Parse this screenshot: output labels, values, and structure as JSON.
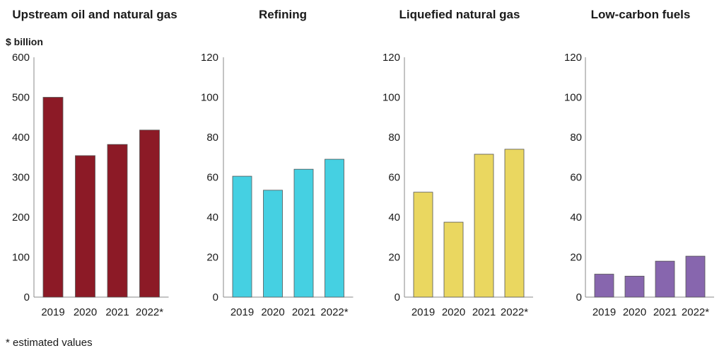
{
  "footnote": "* estimated values",
  "chart_data": [
    {
      "type": "bar",
      "title": "Upstream oil and natural gas",
      "ylabel": "$ billion",
      "categories": [
        "2019",
        "2020",
        "2021",
        "2022*"
      ],
      "values": [
        500,
        354,
        382,
        418
      ],
      "ylim": [
        0,
        600
      ],
      "yticks": [
        0,
        100,
        200,
        300,
        400,
        500,
        600
      ],
      "color": "#8c1a26",
      "grid": false
    },
    {
      "type": "bar",
      "title": "Refining",
      "ylabel": "",
      "categories": [
        "2019",
        "2020",
        "2021",
        "2022*"
      ],
      "values": [
        60.5,
        53.5,
        64,
        69
      ],
      "ylim": [
        0,
        120
      ],
      "yticks": [
        0,
        20,
        40,
        60,
        80,
        100,
        120
      ],
      "color": "#45d0e2",
      "grid": false
    },
    {
      "type": "bar",
      "title": "Liquefied natural gas",
      "ylabel": "",
      "categories": [
        "2019",
        "2020",
        "2021",
        "2022*"
      ],
      "values": [
        52.5,
        37.5,
        71.5,
        74
      ],
      "ylim": [
        0,
        120
      ],
      "yticks": [
        0,
        20,
        40,
        60,
        80,
        100,
        120
      ],
      "color": "#ead760",
      "grid": false
    },
    {
      "type": "bar",
      "title": "Low-carbon fuels",
      "ylabel": "",
      "categories": [
        "2019",
        "2020",
        "2021",
        "2022*"
      ],
      "values": [
        11.5,
        10.5,
        18,
        20.5
      ],
      "ylim": [
        0,
        120
      ],
      "yticks": [
        0,
        20,
        40,
        60,
        80,
        100,
        120
      ],
      "color": "#8766ae",
      "grid": false
    }
  ]
}
